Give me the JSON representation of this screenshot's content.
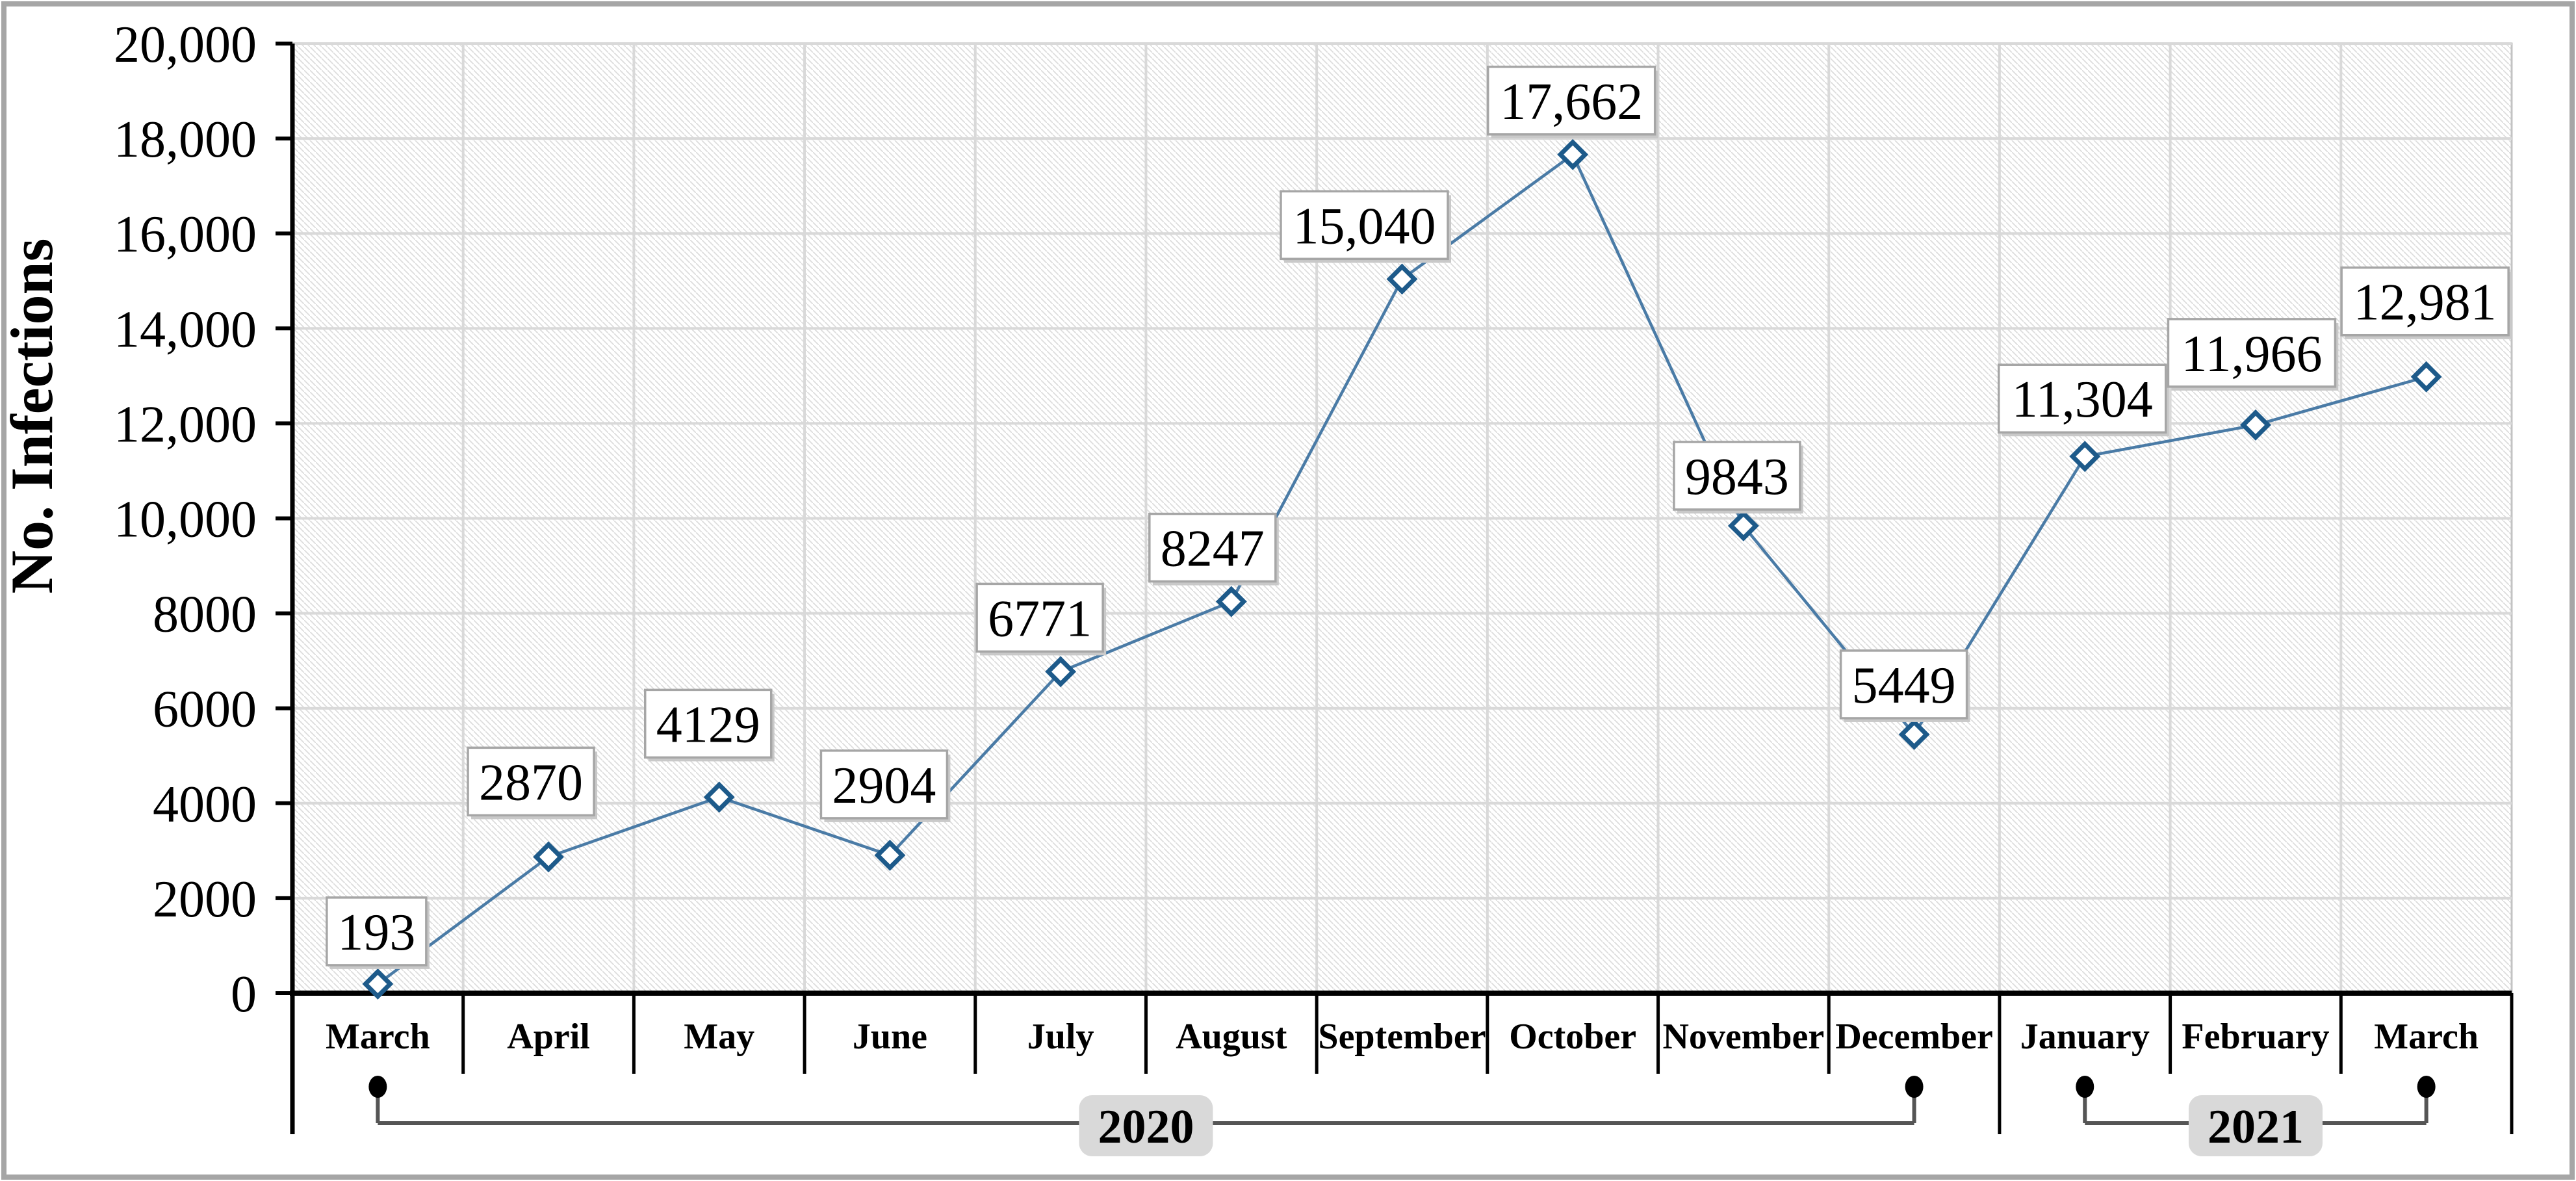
{
  "chart_data": {
    "type": "line",
    "title": "",
    "ylabel": "No. Infections",
    "xlabel": "",
    "x": [
      "March",
      "April",
      "May",
      "June",
      "July",
      "August",
      "September",
      "October",
      "November",
      "December",
      "January",
      "February",
      "March"
    ],
    "series": [
      {
        "name": "No. Infections",
        "values": [
          193,
          2870,
          4129,
          2904,
          6771,
          8247,
          15040,
          17662,
          9843,
          5449,
          11304,
          11966,
          12981
        ]
      }
    ],
    "data_labels": [
      "193",
      "2870",
      "4129",
      "2904",
      "6771",
      "8247",
      "15,040",
      "17,662",
      "9843",
      "5449",
      "11,304",
      "11,966",
      "12,981"
    ],
    "ylim": [
      0,
      20000
    ],
    "ytick_step": 2000,
    "ytick_labels": [
      "0",
      "2000",
      "4000",
      "6000",
      "8000",
      "10,000",
      "12,000",
      "14,000",
      "16,000",
      "18,000",
      "20,000"
    ],
    "grid": true,
    "legend": false,
    "marker": "diamond",
    "line_color": "#4a7ba6",
    "marker_color": "#1d5a8a",
    "year_groups": [
      {
        "label": "2020",
        "start_index": 0,
        "end_index": 9
      },
      {
        "label": "2021",
        "start_index": 10,
        "end_index": 12
      }
    ]
  }
}
